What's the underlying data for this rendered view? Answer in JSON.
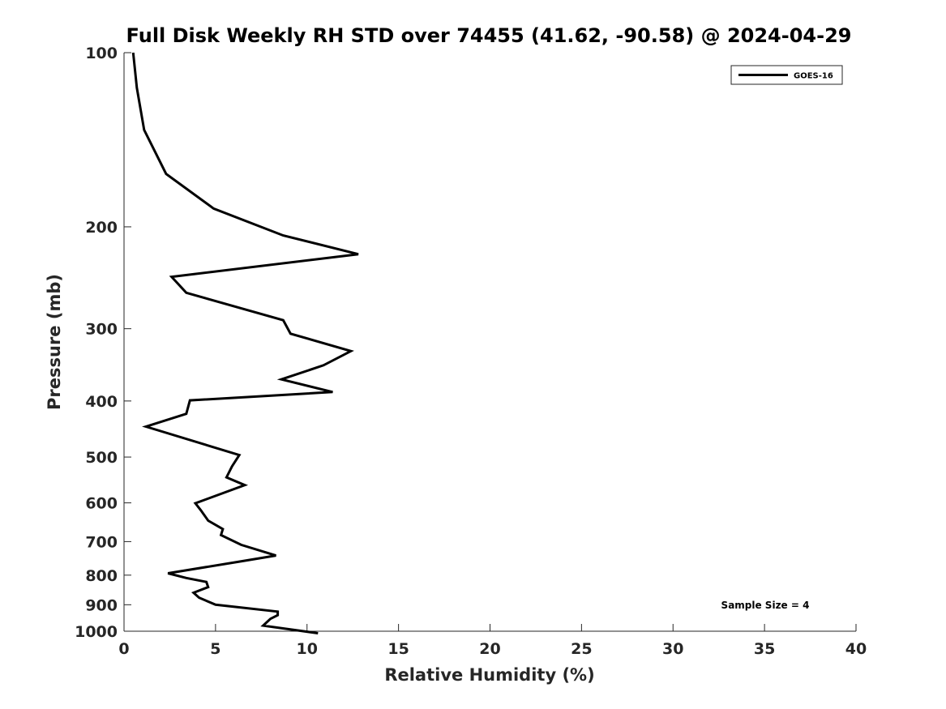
{
  "chart_data": {
    "type": "line",
    "title": "Full Disk Weekly RH STD over 74455 (41.62, -90.58) @ 2024-04-29",
    "xlabel": "Relative Humidity (%)",
    "ylabel": "Pressure (mb)",
    "xlim": [
      0,
      40
    ],
    "ylim": [
      100,
      1000
    ],
    "y_scale": "log",
    "y_reversed": true,
    "x_ticks": [
      0,
      5,
      10,
      15,
      20,
      25,
      30,
      35,
      40
    ],
    "y_ticks": [
      100,
      200,
      300,
      400,
      500,
      600,
      700,
      800,
      900,
      1000
    ],
    "grid": false,
    "legend_position": "top-right",
    "annotation": "Sample Size = 4",
    "series": [
      {
        "name": "GOES-16",
        "color": "#000000",
        "x": [
          0.5,
          0.7,
          1.1,
          2.3,
          4.9,
          8.7,
          12.8,
          2.6,
          3.4,
          8.7,
          9.1,
          12.4,
          10.9,
          8.6,
          11.4,
          3.6,
          3.4,
          1.2,
          6.3,
          5.9,
          5.6,
          6.6,
          3.9,
          4.2,
          4.6,
          5.4,
          5.3,
          6.4,
          8.3,
          6.3,
          2.4,
          3.4,
          4.5,
          4.6,
          3.8,
          4.1,
          5.0,
          8.4,
          8.4,
          8.0,
          7.6,
          10.6
        ],
        "y": [
          100,
          115,
          136,
          162,
          186,
          207,
          223,
          244,
          260,
          290,
          306,
          328,
          347,
          367,
          386,
          399,
          421,
          443,
          496,
          519,
          542,
          559,
          601,
          618,
          644,
          666,
          682,
          709,
          740,
          758,
          794,
          809,
          822,
          839,
          858,
          875,
          900,
          925,
          938,
          952,
          978,
          1008
        ]
      }
    ]
  }
}
